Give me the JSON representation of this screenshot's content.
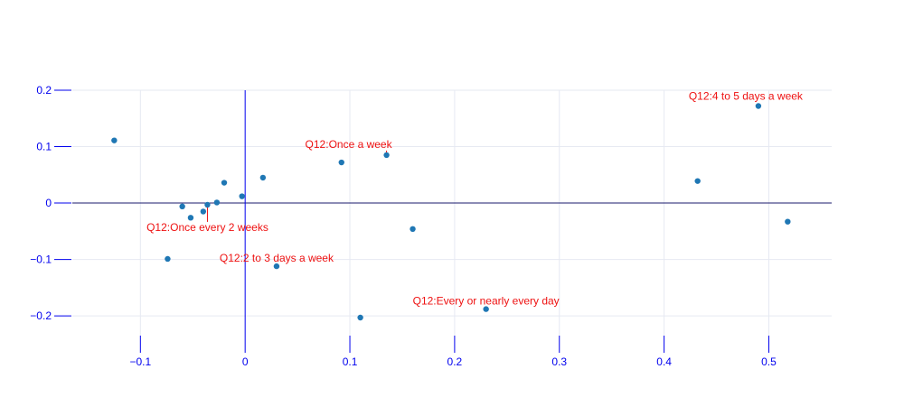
{
  "chart_data": {
    "type": "scatter",
    "title": "",
    "xlabel": "",
    "ylabel": "",
    "xlim": [
      -0.165,
      0.56
    ],
    "ylim": [
      -0.235,
      0.2
    ],
    "xticks": [
      -0.1,
      0,
      0.1,
      0.2,
      0.3,
      0.4,
      0.5
    ],
    "xtick_labels": [
      "−0.1",
      "0",
      "0.1",
      "0.2",
      "0.3",
      "0.4",
      "0.5"
    ],
    "yticks": [
      -0.2,
      -0.1,
      0,
      0.1,
      0.2
    ],
    "ytick_labels": [
      "−0.2",
      "−0.1",
      "0",
      "0.1",
      "0.2"
    ],
    "grid": true,
    "zero_lines": true,
    "colors": {
      "marker": "#1f77b4",
      "axis": "#0000ee",
      "grid": "#e6e9f2",
      "annotation": "#ee1111"
    },
    "series": [
      {
        "x": [
          -0.125,
          -0.074,
          -0.06,
          -0.052,
          -0.04,
          -0.036,
          -0.027,
          -0.02,
          -0.003,
          0.017,
          0.03,
          0.092,
          0.11,
          0.135,
          0.16,
          0.23,
          0.432,
          0.49,
          0.518
        ],
        "y": [
          0.111,
          -0.099,
          -0.006,
          -0.026,
          -0.015,
          -0.003,
          0.001,
          0.036,
          0.012,
          0.045,
          -0.112,
          0.072,
          -0.203,
          0.085,
          -0.046,
          -0.188,
          0.039,
          0.172,
          -0.033
        ]
      }
    ],
    "annotations": [
      {
        "text": "Q12:4 to 5 days a week",
        "x": 0.49,
        "y": 0.172
      },
      {
        "text": "Q12:Once a week",
        "x": 0.135,
        "y": 0.085
      },
      {
        "text": "Q12:Once every 2 weeks",
        "x": -0.036,
        "y": -0.003
      },
      {
        "text": "Q12:2 to 3 days a week",
        "x": 0.03,
        "y": -0.112
      },
      {
        "text": "Q12:Every or nearly every day",
        "x": 0.23,
        "y": -0.188
      }
    ]
  }
}
